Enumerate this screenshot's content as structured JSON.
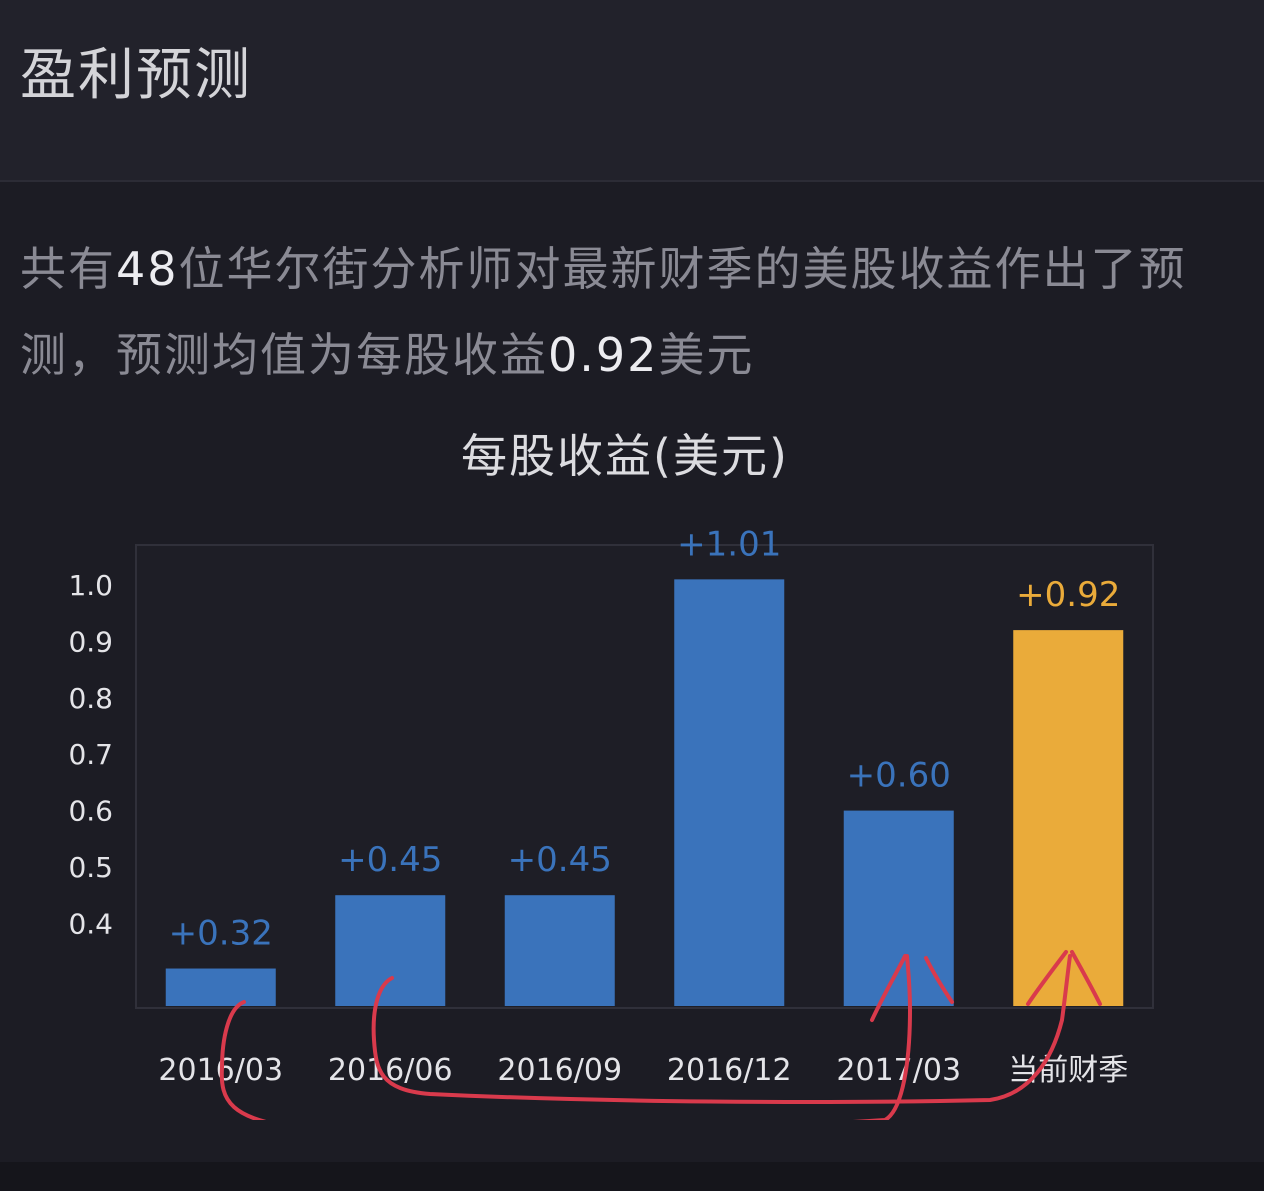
{
  "header": {
    "title": "盈利预测"
  },
  "summary": {
    "part1": "共有",
    "analyst_count": "48",
    "part2": "位华尔街分析师对最新财季的美股收益作出了预测，预测均值为每股收益",
    "mean_eps": "0.92",
    "part3": "美元"
  },
  "colors": {
    "background": "#1c1c24",
    "bar_blue": "#3a73bb",
    "bar_highlight": "#eaab3a",
    "label_blue": "#3a73bb",
    "annotation_red": "#d93a4c"
  },
  "chart_data": {
    "type": "bar",
    "title": "每股收益(美元)",
    "categories": [
      "2016/03",
      "2016/06",
      "2016/09",
      "2016/12",
      "2017/03",
      "当前财季"
    ],
    "values": [
      0.32,
      0.45,
      0.45,
      1.01,
      0.6,
      0.92
    ],
    "data_labels": [
      "+0.32",
      "+0.45",
      "+0.45",
      "+1.01",
      "+0.60",
      "+0.92"
    ],
    "highlight_index": 5,
    "yticks": [
      "0.4",
      "0.5",
      "0.6",
      "0.7",
      "0.8",
      "0.9",
      "1.0"
    ],
    "ylim": [
      0.25,
      1.0
    ],
    "grid": false
  }
}
